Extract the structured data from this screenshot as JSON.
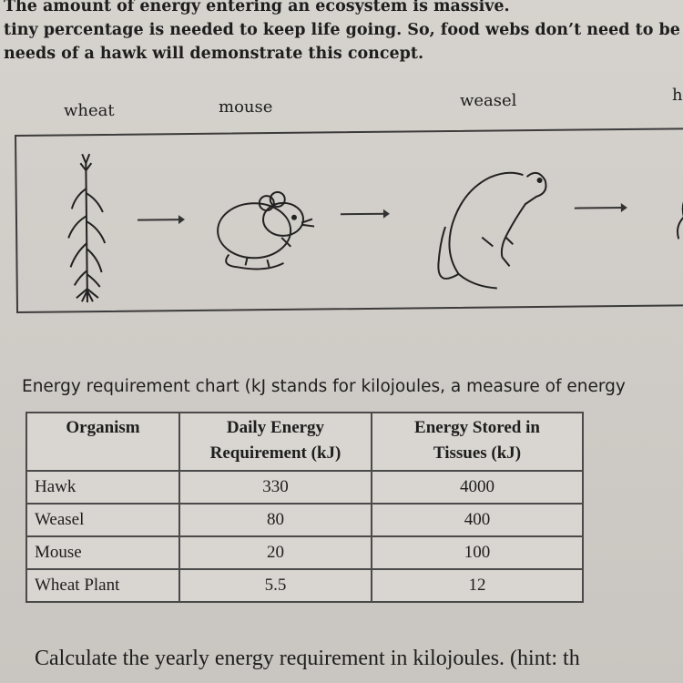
{
  "intro": {
    "line1": "The amount of energy entering an ecosystem is massive.",
    "line2": "tiny percentage is needed to keep life going. So, food webs don’t need to be",
    "line3": "needs of a hawk will demonstrate this concept."
  },
  "food_chain": {
    "organisms": [
      "wheat",
      "mouse",
      "weasel",
      "h"
    ],
    "arrow_icon": "right-arrow-icon"
  },
  "caption": "Energy requirement chart (kJ stands for kilojoules, a measure of energy",
  "table": {
    "headers": {
      "organism": "Organism",
      "daily_line1": "Daily Energy",
      "daily_line2": "Requirement (kJ)",
      "stored_line1": "Energy Stored in",
      "stored_line2": "Tissues (kJ)"
    },
    "rows": [
      {
        "organism": "Hawk",
        "daily": "330",
        "stored": "4000"
      },
      {
        "organism": "Weasel",
        "daily": "80",
        "stored": "400"
      },
      {
        "organism": "Mouse",
        "daily": "20",
        "stored": "100"
      },
      {
        "organism": "Wheat Plant",
        "daily": "5.5",
        "stored": "12"
      }
    ]
  },
  "question": "Calculate the yearly energy requirement in kilojoules. (hint: th"
}
